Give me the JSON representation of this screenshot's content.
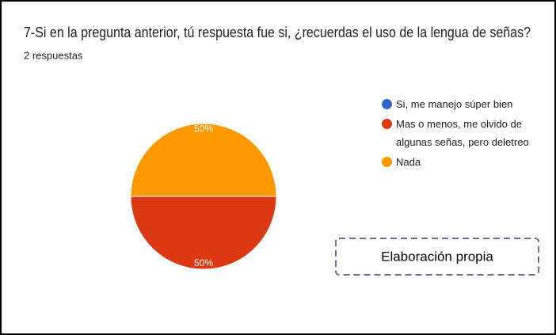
{
  "chart_data": {
    "type": "pie",
    "title": "7-Si en la pregunta anterior, tú respuesta fue si, ¿recuerdas el uso de la lengua de señas?",
    "subtitle": "2 respuestas",
    "categories": [
      "Si, me manejo súper bien",
      "Mas o menos, me olvido de algunas señas, pero deletreo",
      "Nada"
    ],
    "values": [
      0,
      50,
      50
    ],
    "value_labels": [
      null,
      "50%",
      "50%"
    ],
    "colors": [
      "#3366cc",
      "#dc3912",
      "#ff9900"
    ],
    "legend": "right",
    "annotation": "Elaboración propia"
  }
}
